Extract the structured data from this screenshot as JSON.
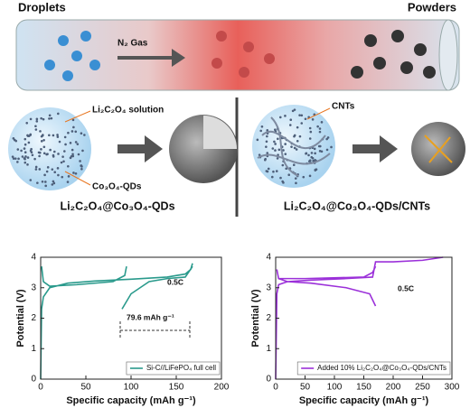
{
  "diagram": {
    "droplets": "Droplets",
    "powders": "Powders",
    "gas": "N₂ Gas",
    "solution": "Li₂C₂O₄ solution",
    "qds": "Co₃O₄-QDs",
    "left_product": "Li₂C₂O₄@Co₃O₄-QDs",
    "cnts": "CNTs",
    "right_product": "Li₂C₂O₄@Co₃O₄-QDs/CNTs"
  },
  "chart_data": [
    {
      "type": "line",
      "xlabel": "Specific capacity (mAh g⁻¹)",
      "ylabel": "Potential (V)",
      "annotations": [
        "0.5C",
        "79.6 mAh g⁻¹"
      ],
      "xlim": [
        0,
        200
      ],
      "xticks": [
        0,
        50,
        100,
        150,
        200
      ],
      "ylim": [
        0,
        4
      ],
      "yticks": [
        0,
        1,
        2,
        3,
        4
      ],
      "legend": "lower right",
      "series": [
        {
          "name": "Si-C//LiFePO₄ full cell",
          "color": "#2a9a8c",
          "x": [
            0,
            1,
            3,
            10,
            30,
            60,
            100,
            140,
            160,
            166,
            168,
            null,
            168,
            160,
            140,
            120,
            100,
            90,
            null,
            1,
            3,
            10,
            40,
            80,
            93,
            95
          ],
          "values": [
            0,
            2.3,
            2.7,
            3.0,
            3.15,
            3.22,
            3.28,
            3.35,
            3.45,
            3.6,
            3.8,
            null,
            3.7,
            3.35,
            3.3,
            3.2,
            2.8,
            2.3,
            null,
            3.7,
            3.2,
            3.05,
            3.1,
            3.2,
            3.4,
            3.7
          ]
        }
      ]
    },
    {
      "type": "line",
      "xlabel": "Specific capacity (mAh g⁻¹)",
      "ylabel": "Potential (V)",
      "annotations": [
        "0.5C"
      ],
      "xlim": [
        0,
        300
      ],
      "xticks": [
        0,
        50,
        100,
        150,
        200,
        250,
        300
      ],
      "ylim": [
        0,
        4
      ],
      "yticks": [
        0,
        1,
        2,
        3,
        4
      ],
      "legend": "lower right",
      "series": [
        {
          "name": "Added 10% Li₂C₂O₄@Co₃O₄-QDs/CNTs",
          "color": "#9b30d9",
          "x": [
            0,
            2,
            5,
            20,
            60,
            120,
            165,
            170,
            200,
            250,
            285,
            null,
            170,
            160,
            120,
            60,
            20,
            5,
            2,
            null,
            5,
            50,
            150,
            165,
            170
          ],
          "values": [
            0,
            2.8,
            3.1,
            3.2,
            3.25,
            3.3,
            3.35,
            3.85,
            3.85,
            3.9,
            4.0,
            null,
            2.4,
            2.8,
            3.0,
            3.15,
            3.2,
            3.3,
            3.6,
            null,
            3.3,
            3.3,
            3.35,
            3.5,
            3.7
          ]
        }
      ]
    }
  ]
}
